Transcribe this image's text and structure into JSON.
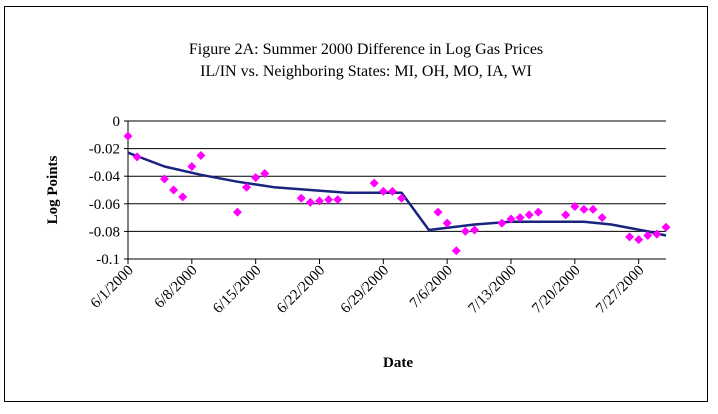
{
  "chart_data": {
    "type": "scatter",
    "title": "Figure 2A: Summer 2000 Difference in Log Gas Prices",
    "subtitle": "IL/IN vs. Neighboring States: MI, OH, MO, IA, WI",
    "xlabel": "Date",
    "ylabel": "Log Points",
    "x_tick_labels": [
      "6/1/2000",
      "6/8/2000",
      "6/15/2000",
      "6/22/2000",
      "6/29/2000",
      "7/6/2000",
      "7/13/2000",
      "7/20/2000",
      "7/27/2000"
    ],
    "y_tick_labels": [
      "0",
      "-0.02",
      "-0.04",
      "-0.06",
      "-0.08",
      "-0.1"
    ],
    "xlim": [
      "2000-06-01",
      "2000-07-30"
    ],
    "ylim": [
      -0.1,
      0
    ],
    "grid": "horizontal",
    "colors": {
      "points": "#ff00ff",
      "line": "#1a237e"
    },
    "series": [
      {
        "kind": "points",
        "x": [
          "2000-06-01",
          "2000-06-02",
          "2000-06-05",
          "2000-06-06",
          "2000-06-07",
          "2000-06-08",
          "2000-06-09",
          "2000-06-13",
          "2000-06-14",
          "2000-06-15",
          "2000-06-16",
          "2000-06-20",
          "2000-06-21",
          "2000-06-22",
          "2000-06-23",
          "2000-06-24",
          "2000-06-28",
          "2000-06-29",
          "2000-06-30",
          "2000-07-01",
          "2000-07-05",
          "2000-07-06",
          "2000-07-07",
          "2000-07-08",
          "2000-07-09",
          "2000-07-12",
          "2000-07-13",
          "2000-07-14",
          "2000-07-15",
          "2000-07-16",
          "2000-07-19",
          "2000-07-20",
          "2000-07-21",
          "2000-07-22",
          "2000-07-23",
          "2000-07-26",
          "2000-07-27",
          "2000-07-28",
          "2000-07-29",
          "2000-07-30"
        ],
        "y": [
          -0.011,
          -0.026,
          -0.042,
          -0.05,
          -0.055,
          -0.033,
          -0.025,
          -0.066,
          -0.048,
          -0.041,
          -0.038,
          -0.056,
          -0.059,
          -0.058,
          -0.057,
          -0.057,
          -0.045,
          -0.051,
          -0.051,
          -0.056,
          -0.066,
          -0.074,
          -0.094,
          -0.08,
          -0.079,
          -0.074,
          -0.071,
          -0.07,
          -0.068,
          -0.066,
          -0.068,
          -0.062,
          -0.064,
          -0.064,
          -0.07,
          -0.084,
          -0.086,
          -0.083,
          -0.082,
          -0.077
        ]
      },
      {
        "kind": "line",
        "x": [
          "2000-06-01",
          "2000-06-05",
          "2000-06-09",
          "2000-06-13",
          "2000-06-17",
          "2000-06-21",
          "2000-06-25",
          "2000-06-29",
          "2000-07-01",
          "2000-07-04",
          "2000-07-09",
          "2000-07-13",
          "2000-07-17",
          "2000-07-21",
          "2000-07-24",
          "2000-07-28",
          "2000-07-30"
        ],
        "y": [
          -0.023,
          -0.033,
          -0.039,
          -0.044,
          -0.048,
          -0.05,
          -0.052,
          -0.052,
          -0.052,
          -0.079,
          -0.075,
          -0.073,
          -0.073,
          -0.073,
          -0.075,
          -0.08,
          -0.083
        ]
      }
    ]
  }
}
